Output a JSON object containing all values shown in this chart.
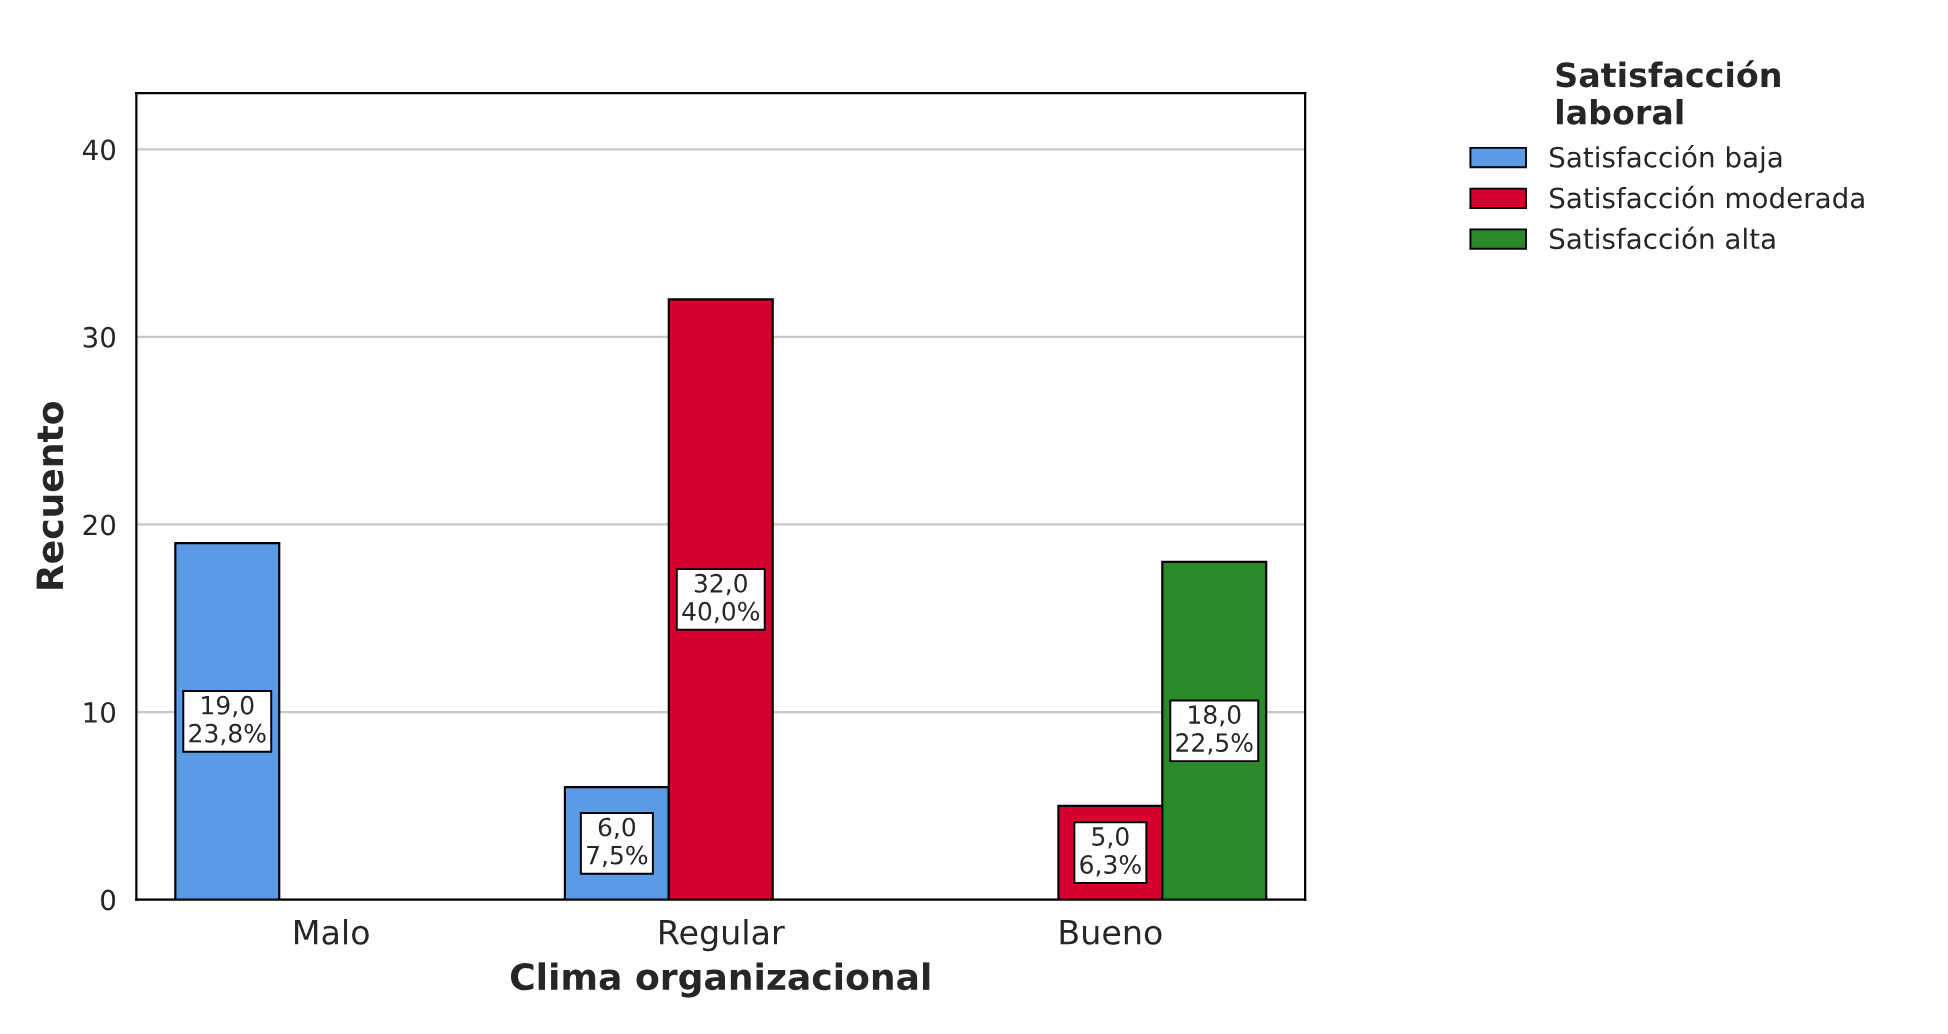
{
  "chart_data": {
    "type": "bar",
    "xlabel": "Clima organizacional",
    "ylabel": "Recuento",
    "legend_title": "Satisfacción\nlaboral",
    "categories": [
      "Malo",
      "Regular",
      "Bueno"
    ],
    "series": [
      {
        "name": "Satisfacción baja",
        "color": "#5b9be6",
        "values": [
          19,
          6,
          null
        ],
        "value_labels": [
          "19,0\n23,8%",
          "6,0\n7,5%",
          null
        ]
      },
      {
        "name": "Satisfacción moderada",
        "color": "#d6002f",
        "values": [
          null,
          32,
          5
        ],
        "value_labels": [
          null,
          "32,0\n40,0%",
          "5,0\n6,3%"
        ]
      },
      {
        "name": "Satisfacción alta",
        "color": "#2a8a2a",
        "values": [
          null,
          null,
          18
        ],
        "value_labels": [
          null,
          null,
          "18,0\n22,5%"
        ]
      }
    ],
    "ylim": [
      0,
      43
    ],
    "yticks": [
      0,
      10,
      20,
      30,
      40
    ],
    "grid": "y",
    "legend": "top right"
  }
}
